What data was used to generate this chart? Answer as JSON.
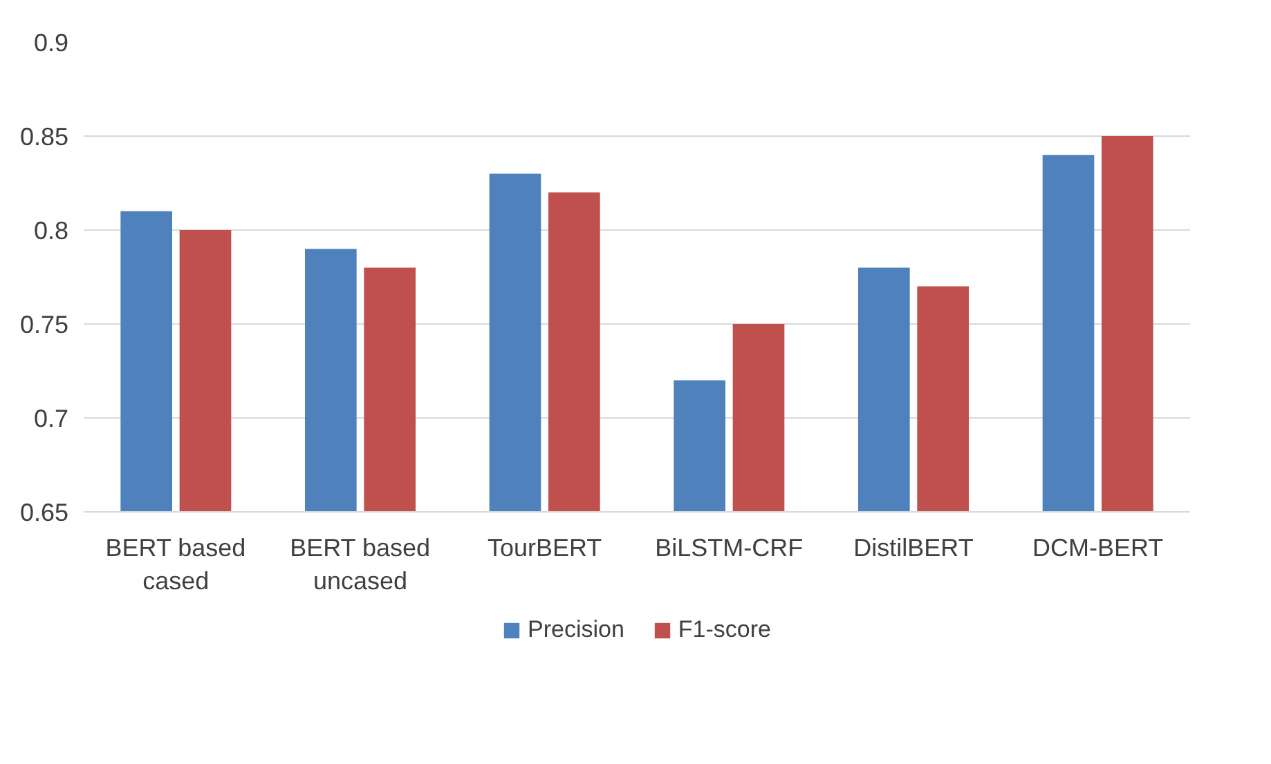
{
  "chart_data": {
    "type": "bar",
    "categories": [
      "BERT based cased",
      "BERT based uncased",
      "TourBERT",
      "BiLSTM-CRF",
      "DistilBERT",
      "DCM-BERT"
    ],
    "series": [
      {
        "name": "Precision",
        "color": "#4f81bd",
        "values": [
          0.81,
          0.79,
          0.83,
          0.72,
          0.78,
          0.84
        ]
      },
      {
        "name": "F1-score",
        "color": "#c0504d",
        "values": [
          0.8,
          0.78,
          0.82,
          0.75,
          0.77,
          0.85
        ]
      }
    ],
    "ylim": [
      0.65,
      0.9
    ],
    "yticks": [
      0.65,
      0.7,
      0.75,
      0.8,
      0.85,
      0.9
    ],
    "grid": "y",
    "legend": "bottom"
  }
}
